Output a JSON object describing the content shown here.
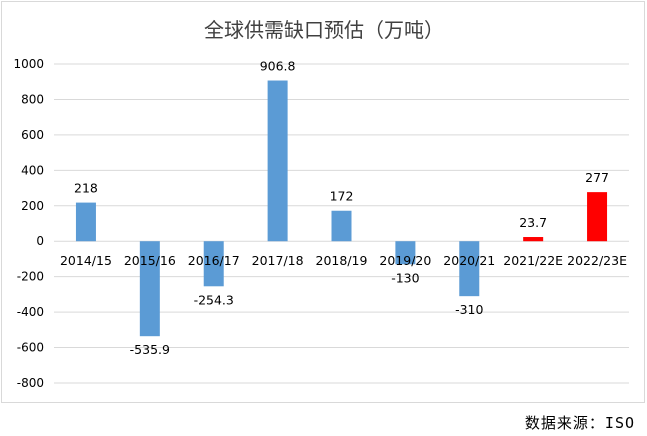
{
  "chart_data": {
    "type": "bar",
    "title": "全球供需缺口预估（万吨）",
    "categories": [
      "2014/15",
      "2015/16",
      "2016/17",
      "2017/18",
      "2018/19",
      "2019/20",
      "2020/21",
      "2021/22E",
      "2022/23E"
    ],
    "values": [
      218,
      -535.9,
      -254.3,
      906.8,
      172,
      -130,
      -310,
      23.7,
      277
    ],
    "data_labels": [
      "218",
      "-535.9",
      "-254.3",
      "906.8",
      "172",
      "-130",
      "-310",
      "23.7",
      "277"
    ],
    "ylim": [
      -800,
      1000
    ],
    "yticks": [
      1000,
      800,
      600,
      400,
      200,
      0,
      -200,
      -400,
      -600,
      -800
    ],
    "grid": true,
    "xlabel": "",
    "ylabel": "",
    "colors": {
      "actual": "#5b9bd5",
      "estimate": "#ff0000",
      "grid": "#d9d9d9",
      "text": "#404040"
    },
    "estimate_categories": [
      "2021/22E",
      "2022/23E"
    ]
  },
  "source": "数据来源：ISO"
}
